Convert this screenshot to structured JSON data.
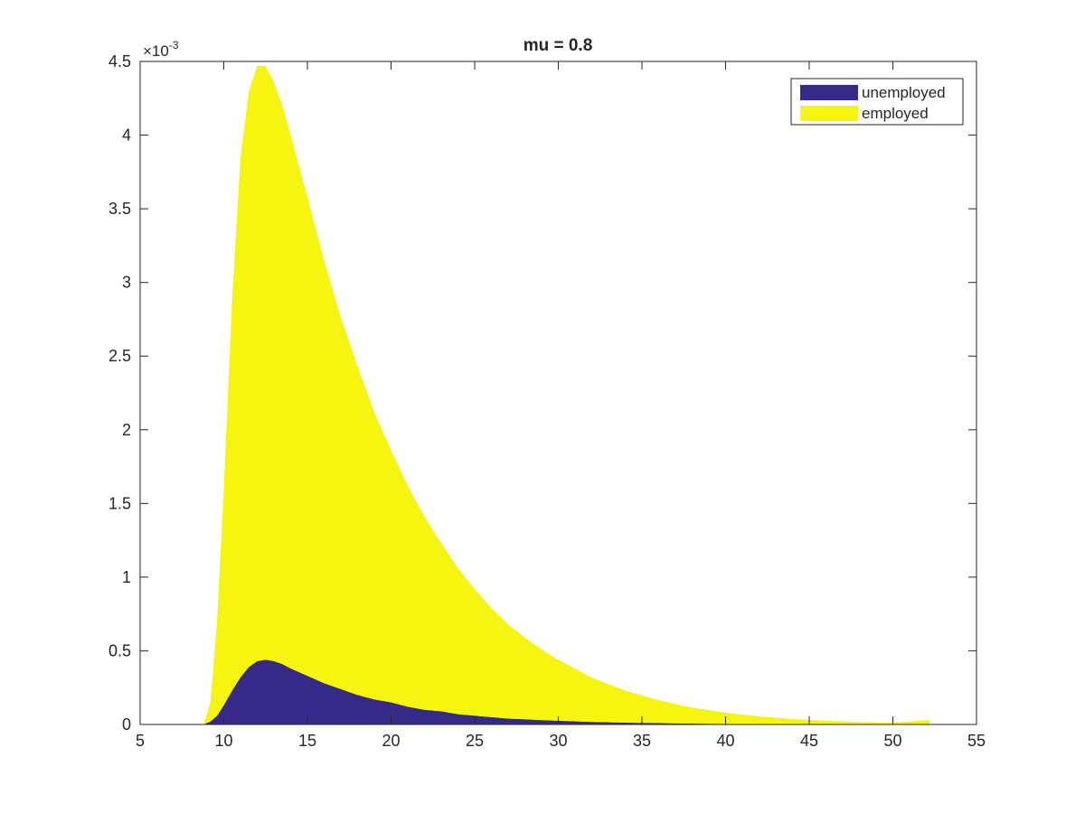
{
  "chart_data": {
    "type": "area",
    "title": "mu = 0.8",
    "xlabel": "",
    "ylabel": "",
    "xlim": [
      5,
      55
    ],
    "ylim": [
      0,
      4.5
    ],
    "y_exponent_label": "×10",
    "y_exponent_power": "-3",
    "x_ticks": [
      5,
      10,
      15,
      20,
      25,
      30,
      35,
      40,
      45,
      50,
      55
    ],
    "y_ticks": [
      0,
      0.5,
      1,
      1.5,
      2,
      2.5,
      3,
      3.5,
      4,
      4.5
    ],
    "x_tick_labels": [
      "5",
      "10",
      "15",
      "20",
      "25",
      "30",
      "35",
      "40",
      "45",
      "50",
      "55"
    ],
    "y_tick_labels": [
      "0",
      "0.5",
      "1",
      "1.5",
      "2",
      "2.5",
      "3",
      "3.5",
      "4",
      "4.5"
    ],
    "stacked": true,
    "grid": false,
    "legend_position": "top-right",
    "x": [
      8.8,
      9.2,
      9.6,
      10,
      10.5,
      11,
      11.5,
      12,
      12.5,
      13,
      13.5,
      14,
      15,
      16,
      17,
      18,
      19,
      20,
      21,
      22,
      23,
      24,
      25,
      26,
      27,
      28,
      29,
      30,
      32,
      34,
      36,
      38,
      40,
      42,
      44,
      46,
      48,
      50,
      52.2
    ],
    "series": [
      {
        "name": "unemployed",
        "color": "#352a87",
        "values": [
          0,
          0.02,
          0.06,
          0.13,
          0.23,
          0.32,
          0.39,
          0.43,
          0.44,
          0.43,
          0.41,
          0.38,
          0.33,
          0.28,
          0.24,
          0.2,
          0.17,
          0.15,
          0.12,
          0.1,
          0.09,
          0.07,
          0.06,
          0.05,
          0.04,
          0.035,
          0.03,
          0.025,
          0.018,
          0.012,
          0.009,
          0.006,
          0.004,
          0.003,
          0.002,
          0.0015,
          0.001,
          0.0008,
          0.0005
        ]
      },
      {
        "name": "employed",
        "color": "#f5f50f",
        "values": [
          0,
          0.13,
          0.64,
          1.47,
          2.66,
          3.53,
          3.91,
          4.04,
          4.03,
          3.93,
          3.79,
          3.62,
          3.25,
          2.87,
          2.52,
          2.23,
          1.95,
          1.71,
          1.5,
          1.31,
          1.14,
          0.99,
          0.86,
          0.74,
          0.64,
          0.555,
          0.48,
          0.415,
          0.3,
          0.218,
          0.156,
          0.109,
          0.076,
          0.052,
          0.035,
          0.024,
          0.016,
          0.0112,
          0.0295
        ]
      }
    ]
  }
}
